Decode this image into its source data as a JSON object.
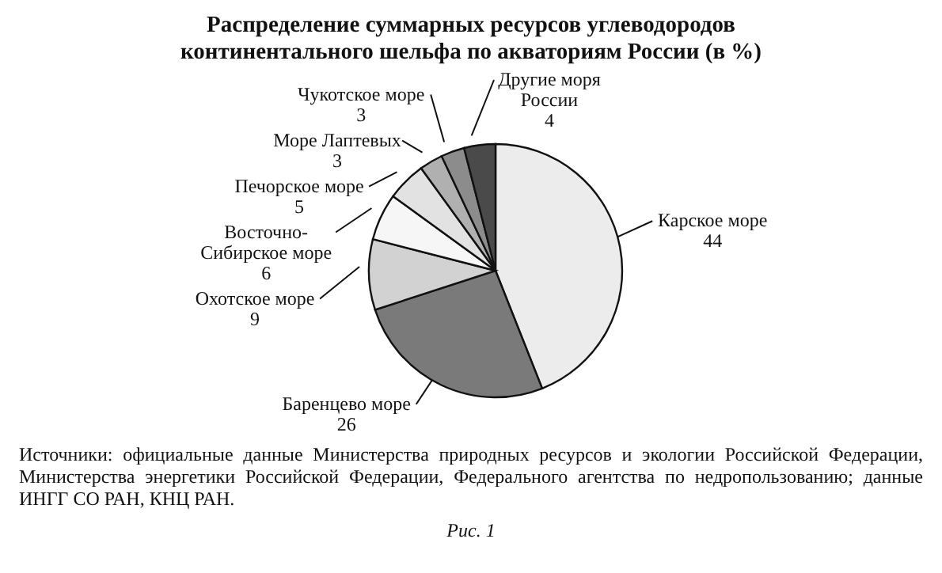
{
  "chart_data": {
    "type": "pie",
    "title": "Распределение суммарных ресурсов углеводородов континентального шельфа по акваториям России (в %)",
    "categories": [
      "Карское море",
      "Баренцево море",
      "Охотское море",
      "Восточно-Сибирское море",
      "Печорское море",
      "Море Лаптевых",
      "Чукотское море",
      "Другие моря России"
    ],
    "values": [
      44,
      26,
      9,
      6,
      5,
      3,
      3,
      4
    ],
    "colors": [
      "#ececec",
      "#7a7a7a",
      "#d2d2d2",
      "#f6f6f6",
      "#e2e2e2",
      "#b0b0b0",
      "#8c8c8c",
      "#4a4a4a"
    ],
    "data_labels": true,
    "legend": false,
    "annotations": [
      "Источники: официальные данные Министерства природных ресурсов и экологии Российской Федерации, Министерства энергетики Российской Федерации, Федерального агентства по недропользованию; данные ИНГГ СО РАН, КНЦ РАН.",
      "Рис. 1"
    ]
  }
}
